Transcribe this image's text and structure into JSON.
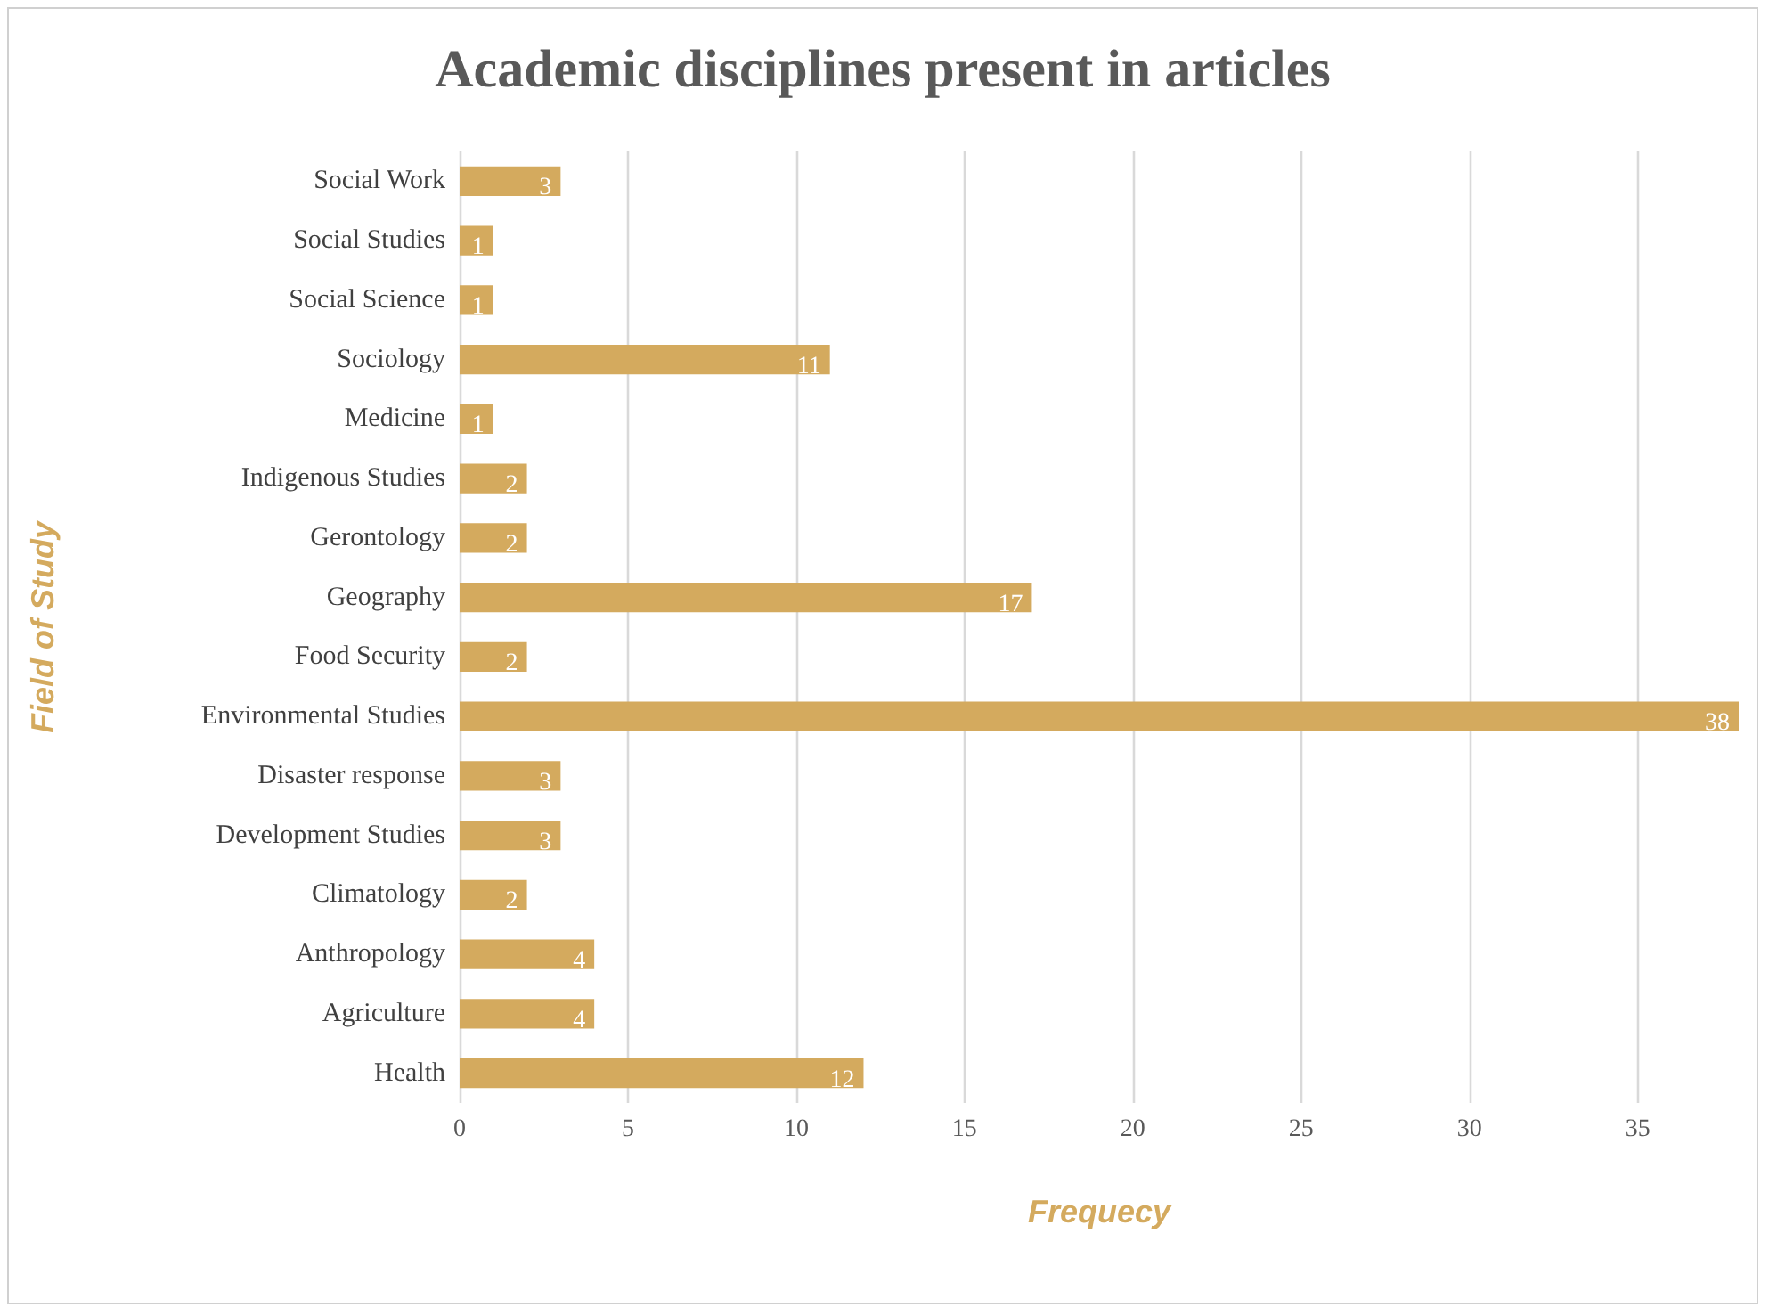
{
  "chart_data": {
    "type": "bar",
    "orientation": "horizontal",
    "title": "Academic disciplines present in articles",
    "xlabel": "Frequecy",
    "ylabel": "Field of Study",
    "categories": [
      "Social Work",
      "Social Studies",
      "Social Science",
      "Sociology",
      "Medicine",
      "Indigenous Studies",
      "Gerontology",
      "Geography",
      "Food Security",
      "Environmental Studies",
      "Disaster response",
      "Development Studies",
      "Climatology",
      "Anthropology",
      "Agriculture",
      "Health"
    ],
    "values": [
      3,
      1,
      1,
      11,
      1,
      2,
      2,
      17,
      2,
      38,
      3,
      3,
      2,
      4,
      4,
      12
    ],
    "color": "#d4aa5e",
    "xlim": [
      0,
      38
    ],
    "xticks": [
      0,
      5,
      10,
      15,
      20,
      25,
      30,
      35
    ],
    "grid": "x",
    "data_labels": true
  }
}
